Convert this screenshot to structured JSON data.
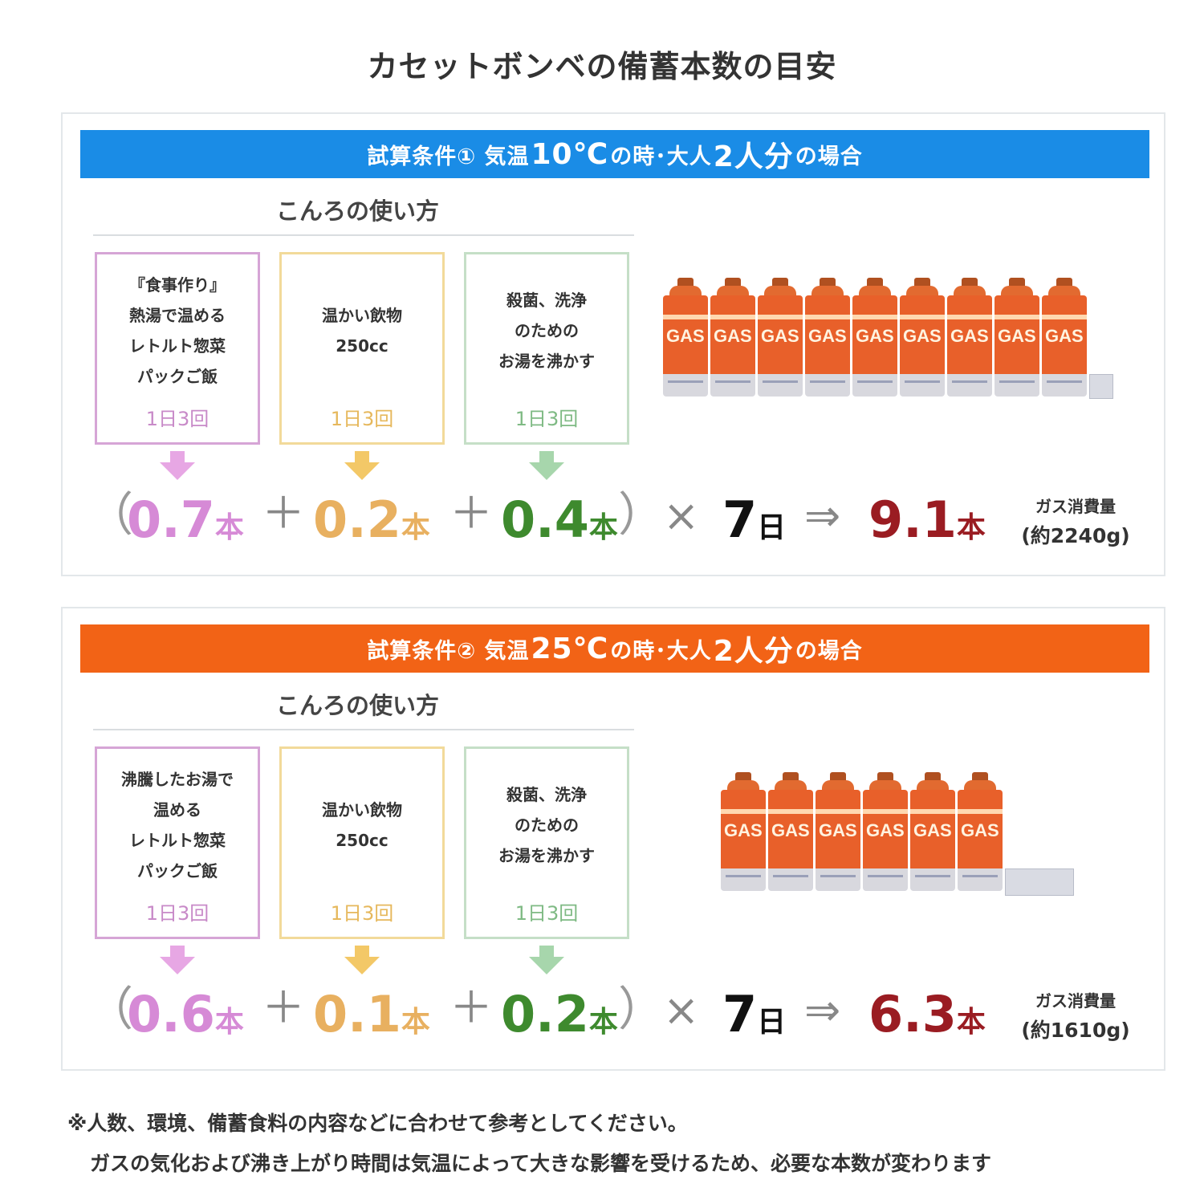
{
  "title": "カセットボンベの備蓄本数の目安",
  "colors": {
    "banner1": "#1a8ce6",
    "banner2": "#f26316",
    "total": "#9a1c22"
  },
  "panels": [
    {
      "banner_pre": "試算条件① 気温",
      "banner_temp": "10℃",
      "banner_mid": "の時･大人",
      "banner_people": "2人分",
      "banner_post": "の場合",
      "usage_title": "こんろの使い方",
      "cards": [
        {
          "desc": "『食事作り』\n熱湯で温める\nレトルト惣菜\nパックご飯",
          "freq": "1日3回"
        },
        {
          "desc": "温かい飲物\n250cc",
          "freq": "1日3回"
        },
        {
          "desc": "殺菌、洗浄\nのための\nお湯を沸かす",
          "freq": "1日3回"
        }
      ],
      "open_paren": "（",
      "close_paren": "）",
      "v1": "0.7",
      "v2": "0.2",
      "v3": "0.4",
      "unit": "本",
      "plus": "＋",
      "times": "×",
      "days": "7",
      "days_unit": "日",
      "arrow": "⇒",
      "total": "9.1",
      "gas_label": "ガス消費量",
      "gas_amount": "(約2240g)",
      "cans_full": 9,
      "cans_partial": 0.1
    },
    {
      "banner_pre": "試算条件② 気温",
      "banner_temp": "25℃",
      "banner_mid": "の時･大人",
      "banner_people": "2人分",
      "banner_post": "の場合",
      "usage_title": "こんろの使い方",
      "cards": [
        {
          "desc": "沸騰したお湯で\n温める\nレトルト惣菜\nパックご飯",
          "freq": "1日3回"
        },
        {
          "desc": "温かい飲物\n250cc",
          "freq": "1日3回"
        },
        {
          "desc": "殺菌、洗浄\nのための\nお湯を沸かす",
          "freq": "1日3回"
        }
      ],
      "open_paren": "（",
      "close_paren": "）",
      "v1": "0.6",
      "v2": "0.1",
      "v3": "0.2",
      "unit": "本",
      "plus": "＋",
      "times": "×",
      "days": "7",
      "days_unit": "日",
      "arrow": "⇒",
      "total": "6.3",
      "gas_label": "ガス消費量",
      "gas_amount": "(約1610g)",
      "cans_full": 6,
      "cans_partial": 0.3
    }
  ],
  "can_label": "GAS",
  "notes": [
    "※人数、環境、備蓄食料の内容などに合わせて参考としてください。",
    "ガスの気化および沸き上がり時間は気温によって大きな影響を受けるため、必要な本数が変わります"
  ]
}
